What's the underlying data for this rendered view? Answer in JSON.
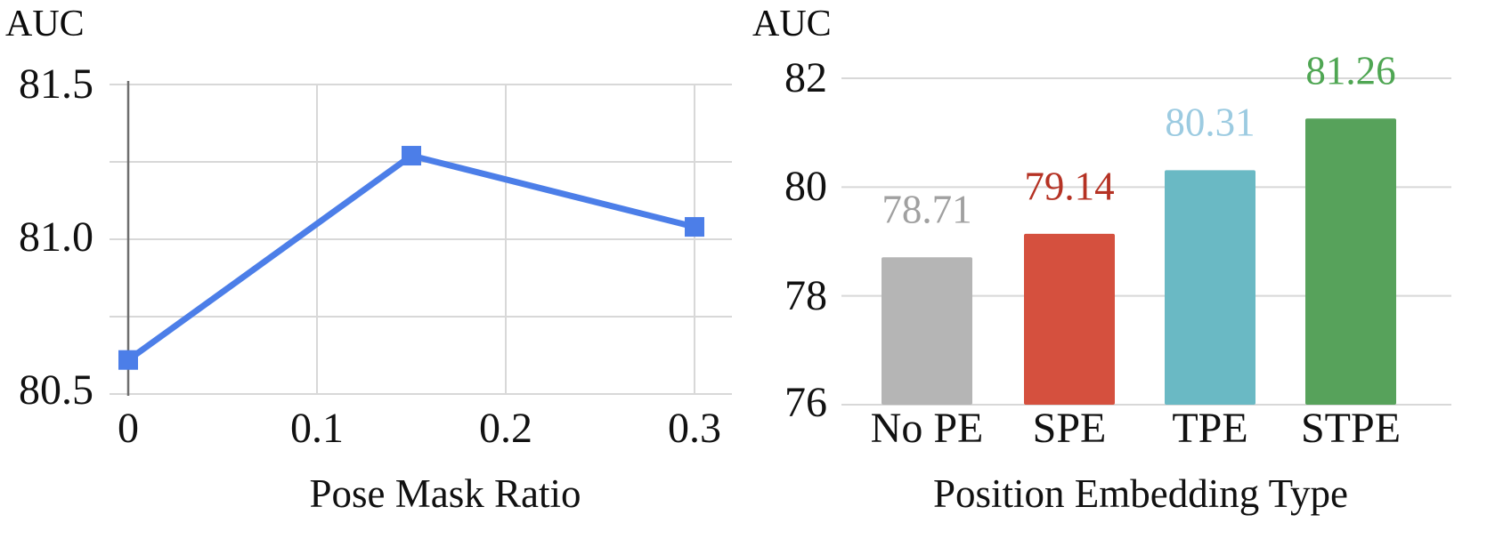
{
  "figure": {
    "background": "#ffffff"
  },
  "chart_data": [
    {
      "type": "line",
      "title": "AUC",
      "xlabel": "Pose Mask Ratio",
      "x": [
        0,
        0.15,
        0.3
      ],
      "y": [
        80.61,
        81.27,
        81.04
      ],
      "xlim": [
        0,
        0.3
      ],
      "ylim": [
        80.5,
        81.5
      ],
      "x_tick_values": [
        0,
        0.1,
        0.2,
        0.3
      ],
      "x_tick_labels": [
        "0",
        "0.1",
        "0.2",
        "0.3"
      ],
      "y_tick_values": [
        81.5,
        81.0,
        80.5
      ],
      "y_tick_labels": [
        "81.5",
        "81.0",
        "80.5"
      ],
      "y_grid_step": 0.25,
      "grid": true,
      "legend": "none",
      "marker": "square",
      "line_color": "#4c7ee8",
      "grid_color": "#d8d8d8",
      "axis_color": "#6e6e6e"
    },
    {
      "type": "bar",
      "title": "AUC",
      "xlabel": "Position Embedding Type",
      "categories": [
        "No PE",
        "SPE",
        "TPE",
        "STPE"
      ],
      "values": [
        78.71,
        79.14,
        80.31,
        81.26
      ],
      "value_labels": [
        "78.71",
        "79.14",
        "80.31",
        "81.26"
      ],
      "bar_colors": [
        "#b5b5b5",
        "#d5503e",
        "#6ab9c4",
        "#57a25b"
      ],
      "value_label_colors": [
        "#a0a0a0",
        "#b53224",
        "#9ccbe1",
        "#4fa653"
      ],
      "ylim": [
        76,
        82
      ],
      "y_tick_values": [
        82,
        80,
        78,
        76
      ],
      "y_tick_labels": [
        "82",
        "80",
        "78",
        "76"
      ],
      "grid": true,
      "legend": "none",
      "grid_color": "#d8d8d8"
    }
  ]
}
